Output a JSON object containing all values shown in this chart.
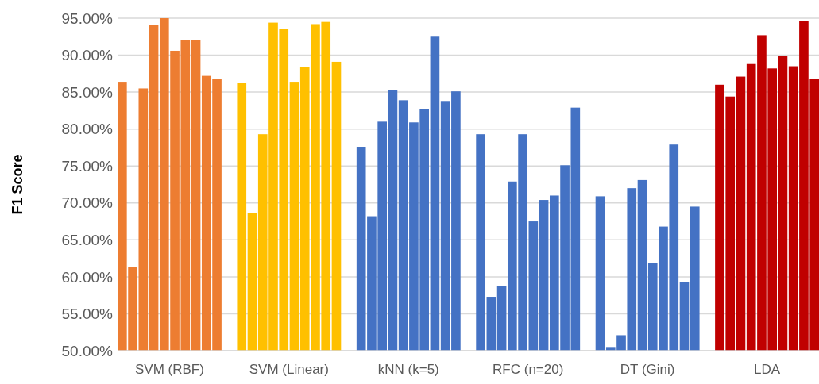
{
  "chart_data": {
    "type": "bar",
    "ylabel": "F1 Score",
    "categories": [
      "SVM (RBF)",
      "SVM (Linear)",
      "kNN (k=5)",
      "RFC (n=20)",
      "DT (Gini)",
      "LDA"
    ],
    "series": [
      {
        "values": [
          86.4,
          86.2,
          77.6,
          79.3,
          70.9,
          86.0
        ],
        "colors": [
          "#ed7d31",
          "#ffc000",
          "#4472c4",
          "#4472c4",
          "#4472c4",
          "#c00000"
        ]
      },
      {
        "values": [
          61.3,
          68.6,
          68.2,
          57.3,
          50.5,
          84.4
        ],
        "colors": [
          "#ed7d31",
          "#ffc000",
          "#4472c4",
          "#4472c4",
          "#4472c4",
          "#c00000"
        ]
      },
      {
        "values": [
          85.5,
          79.3,
          81.0,
          58.7,
          52.1,
          87.1
        ],
        "colors": [
          "#ed7d31",
          "#ffc000",
          "#4472c4",
          "#4472c4",
          "#4472c4",
          "#c00000"
        ]
      },
      {
        "values": [
          94.1,
          94.4,
          85.3,
          72.9,
          72.0,
          88.8
        ],
        "colors": [
          "#ed7d31",
          "#ffc000",
          "#4472c4",
          "#4472c4",
          "#4472c4",
          "#c00000"
        ]
      },
      {
        "values": [
          95.0,
          93.6,
          83.9,
          79.3,
          73.1,
          92.7
        ],
        "colors": [
          "#ed7d31",
          "#ffc000",
          "#4472c4",
          "#4472c4",
          "#4472c4",
          "#c00000"
        ]
      },
      {
        "values": [
          90.6,
          86.4,
          80.9,
          67.5,
          61.9,
          88.2
        ],
        "colors": [
          "#ed7d31",
          "#ffc000",
          "#4472c4",
          "#4472c4",
          "#4472c4",
          "#c00000"
        ]
      },
      {
        "values": [
          92.0,
          88.4,
          82.7,
          70.4,
          66.8,
          89.9
        ],
        "colors": [
          "#ed7d31",
          "#ffc000",
          "#4472c4",
          "#4472c4",
          "#4472c4",
          "#c00000"
        ]
      },
      {
        "values": [
          92.0,
          94.2,
          92.5,
          71.0,
          77.9,
          88.5
        ],
        "colors": [
          "#ed7d31",
          "#ffc000",
          "#4472c4",
          "#4472c4",
          "#4472c4",
          "#c00000"
        ]
      },
      {
        "values": [
          87.2,
          94.5,
          83.8,
          75.1,
          59.3,
          94.6
        ],
        "colors": [
          "#ed7d31",
          "#ffc000",
          "#4472c4",
          "#4472c4",
          "#4472c4",
          "#c00000"
        ]
      },
      {
        "values": [
          86.8,
          89.1,
          85.1,
          82.9,
          69.5,
          86.8
        ],
        "colors": [
          "#ed7d31",
          "#ffc000",
          "#4472c4",
          "#4472c4",
          "#4472c4",
          "#c00000"
        ]
      }
    ],
    "ylim": [
      50,
      95
    ],
    "yticks": [
      {
        "value": 50,
        "label": "50.00%"
      },
      {
        "value": 55,
        "label": "55.00%"
      },
      {
        "value": 60,
        "label": "60.00%"
      },
      {
        "value": 65,
        "label": "65.00%"
      },
      {
        "value": 70,
        "label": "70.00%"
      },
      {
        "value": 75,
        "label": "75.00%"
      },
      {
        "value": 80,
        "label": "80.00%"
      },
      {
        "value": 85,
        "label": "85.00%"
      },
      {
        "value": 90,
        "label": "90.00%"
      },
      {
        "value": 95,
        "label": "95.00%"
      }
    ],
    "grid": "y"
  }
}
